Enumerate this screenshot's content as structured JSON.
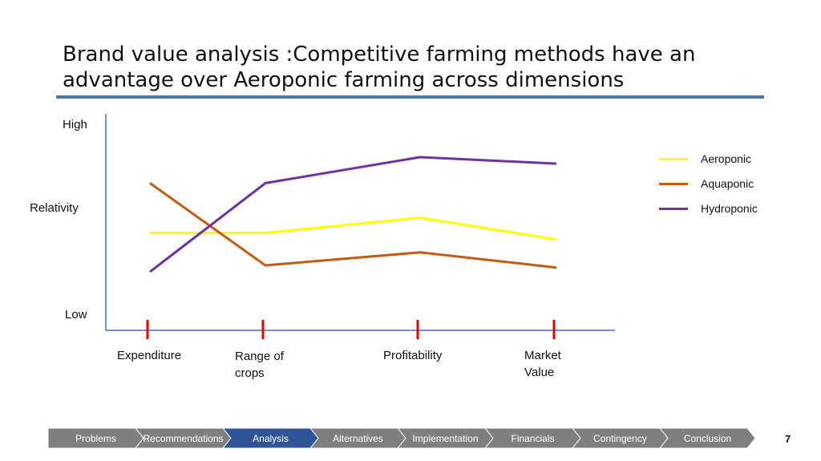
{
  "slide": {
    "title_line1": "Brand value analysis :Competitive farming methods have an",
    "title_line2": "advantage over Aeroponic farming across dimensions",
    "page_number": "7",
    "accent_color": "#4a76b4"
  },
  "chart_data": {
    "type": "line",
    "categories": [
      "Expenditure",
      "Range of crops",
      "Profitability",
      "Market Value"
    ],
    "category_lines": [
      [
        "Expenditure"
      ],
      [
        "Range of",
        "crops"
      ],
      [
        "Profitability"
      ],
      [
        "Market",
        "Value"
      ]
    ],
    "ylabel": "Relativity",
    "y_high_label": "High",
    "y_low_label": "Low",
    "ylim": [
      0,
      100
    ],
    "legend_position": "right",
    "series": [
      {
        "name": "Aeroponic",
        "color": "#ffff00",
        "values": [
          45,
          45,
          52,
          42
        ]
      },
      {
        "name": "Aquaponic",
        "color": "#c55a11",
        "values": [
          68,
          30,
          36,
          29
        ]
      },
      {
        "name": "Hydroponic",
        "color": "#7030a0",
        "values": [
          27,
          68,
          80,
          77
        ]
      }
    ],
    "tick_marker_color": "#e00000",
    "axis_color": "#4472c4"
  },
  "nav": {
    "items": [
      "Problems",
      "Recommendations",
      "Analysis",
      "Alternatives",
      "Implementation",
      "Financials",
      "Contingency",
      "Conclusion"
    ],
    "active_index": 2,
    "active_color": "#2f5597",
    "inactive_color": "#7f7f7f"
  }
}
